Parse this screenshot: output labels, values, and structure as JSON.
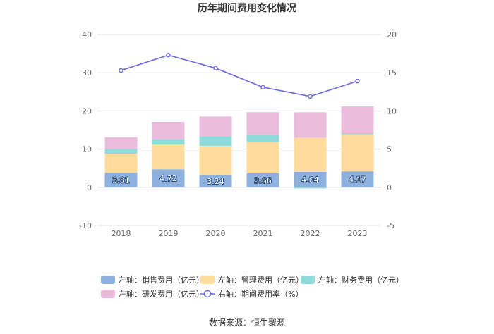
{
  "chart_data": {
    "type": "bar",
    "title": "历年期间费用变化情况",
    "source": "数据来源：恒生聚源",
    "categories": [
      "2018",
      "2019",
      "2020",
      "2021",
      "2022",
      "2023"
    ],
    "stacked": true,
    "left_axis": {
      "ylim": [
        -10,
        40
      ],
      "ticks": [
        "-10",
        "0",
        "10",
        "20",
        "30",
        "40"
      ]
    },
    "right_axis": {
      "ylim": [
        -5,
        20
      ],
      "ticks": [
        "-5",
        "0",
        "5",
        "10",
        "15",
        "20"
      ]
    },
    "grid": true,
    "legend_position": "bottom",
    "series": [
      {
        "name": "左轴：销售费用（亿元）",
        "color": "#8eb0dc",
        "values": [
          3.81,
          4.72,
          3.24,
          3.66,
          4.04,
          4.17
        ],
        "labels": [
          "3.81",
          "4.72",
          "3.24",
          "3.66",
          "4.04",
          "4.17"
        ]
      },
      {
        "name": "左轴：管理费用（亿元）",
        "color": "#ffdc9c",
        "values": [
          5.0,
          6.5,
          7.6,
          8.2,
          8.9,
          9.7
        ]
      },
      {
        "name": "左轴：财务费用（亿元）",
        "color": "#8fdbd9",
        "values": [
          1.2,
          1.4,
          2.5,
          1.8,
          -0.3,
          0.3
        ]
      },
      {
        "name": "左轴：研发费用（亿元）",
        "color": "#ebbcdc",
        "values": [
          3.1,
          4.5,
          5.2,
          6.0,
          6.7,
          7.0
        ]
      },
      {
        "name": "右轴：期间费用率（%）",
        "color": "#6b6be0",
        "type": "line",
        "axis": "right",
        "values": [
          15.3,
          17.3,
          15.6,
          13.1,
          11.9,
          13.9
        ]
      }
    ]
  }
}
